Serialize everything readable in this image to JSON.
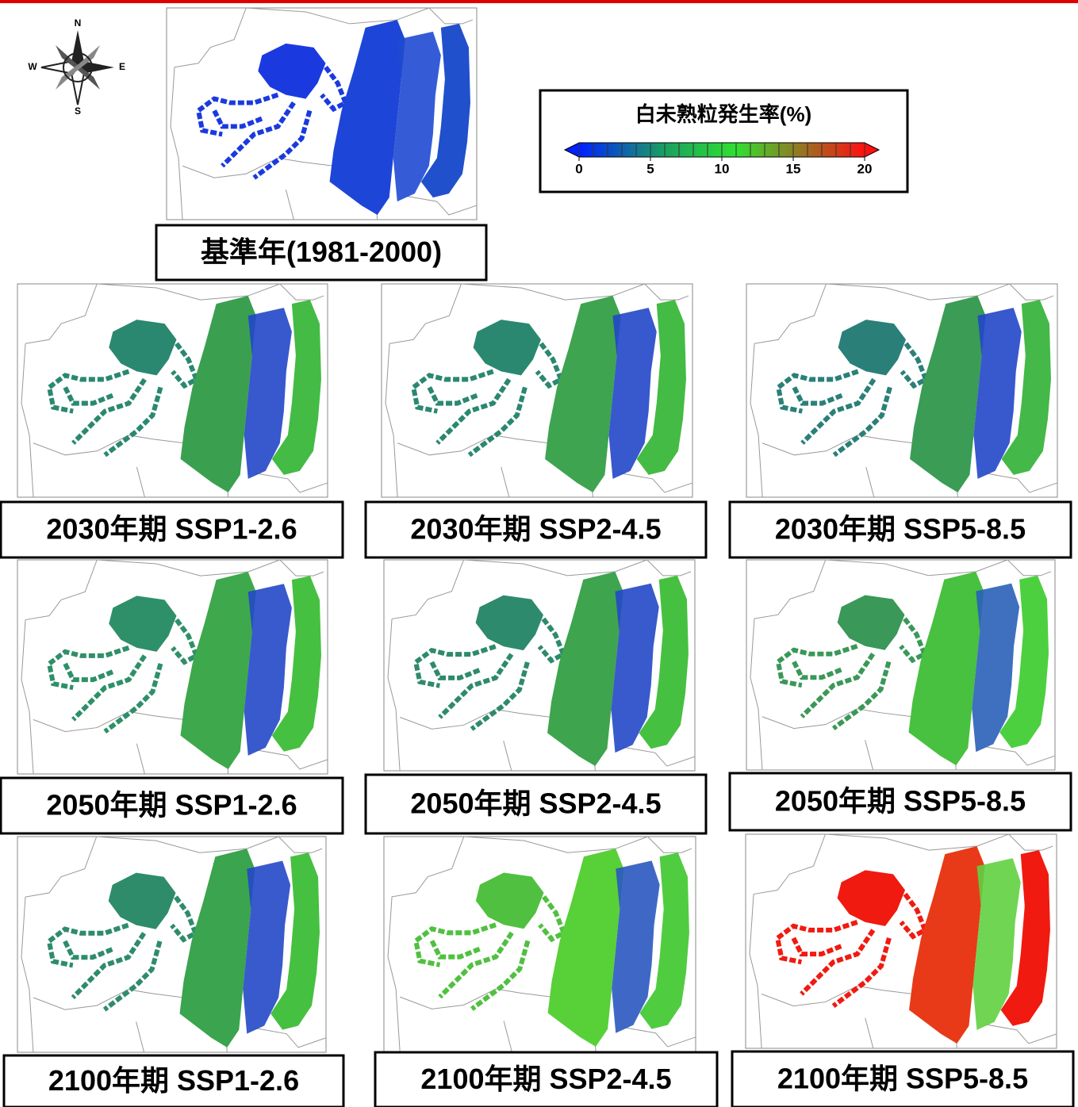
{
  "compass": {
    "north": "N",
    "east": "E",
    "south": "S",
    "west": "W"
  },
  "legend": {
    "title": "白未熟粒発生率(%)",
    "lim": [
      0,
      20
    ],
    "ticks": [
      0,
      5,
      10,
      15,
      20
    ]
  },
  "panels": [
    {
      "label": "基準年(1981-2000)",
      "colors": [
        "#1a3ae0",
        "#1d45d8",
        "#1f4ad2",
        "#2050cc"
      ]
    },
    {
      "label": "2030年期 SSP1-2.6",
      "colors": [
        "#2a8870",
        "#3aa050",
        "#2246c8",
        "#44bb44"
      ]
    },
    {
      "label": "2030年期 SSP2-4.5",
      "colors": [
        "#2a8870",
        "#3ea450",
        "#2246c8",
        "#44bb44"
      ]
    },
    {
      "label": "2030年期 SSP5-8.5",
      "colors": [
        "#2a8078",
        "#3a9c55",
        "#2246c8",
        "#44b848"
      ]
    },
    {
      "label": "2050年期 SSP1-2.6",
      "colors": [
        "#2e9068",
        "#3ea84c",
        "#2348c6",
        "#46c040"
      ]
    },
    {
      "label": "2050年期 SSP2-4.5",
      "colors": [
        "#2e8a6c",
        "#3ea44e",
        "#2348c6",
        "#46c040"
      ]
    },
    {
      "label": "2050年期 SSP5-8.5",
      "colors": [
        "#3a9858",
        "#48c040",
        "#2a60b8",
        "#4cd040"
      ]
    },
    {
      "label": "2100年期 SSP1-2.6",
      "colors": [
        "#2e8c6a",
        "#3aa44e",
        "#2348c6",
        "#46c040"
      ]
    },
    {
      "label": "2100年期 SSP2-4.5",
      "colors": [
        "#50c040",
        "#58d038",
        "#2a58c0",
        "#50cc40"
      ]
    },
    {
      "label": "2100年期 SSP5-8.5",
      "colors": [
        "#f01a10",
        "#e83a18",
        "#60d040",
        "#f01a10"
      ]
    }
  ]
}
